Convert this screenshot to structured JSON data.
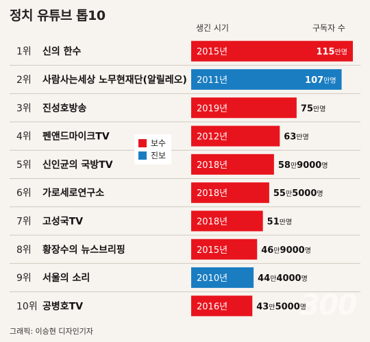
{
  "title": "정치 유튜브 톱10",
  "headers": {
    "year": "생긴 시기",
    "subscribers": "구독자 수"
  },
  "legend": [
    {
      "label": "보수",
      "color": "#e8141d"
    },
    {
      "label": "진보",
      "color": "#1a7dc2"
    }
  ],
  "credit": "그래픽: 이승현 디자인기자",
  "watermark": "300",
  "chart_data": {
    "type": "bar",
    "orientation": "horizontal",
    "unit": "명",
    "categories": [
      "신의 한수",
      "사람사는세상 노무현재단(알릴레오)",
      "진성호방송",
      "펜앤드마이크TV",
      "신인균의 국방TV",
      "가로세로연구소",
      "고성국TV",
      "황장수의 뉴스브리핑",
      "서울의 소리",
      "공병호TV"
    ],
    "ranks": [
      "1위",
      "2위",
      "3위",
      "4위",
      "5위",
      "6위",
      "7위",
      "8위",
      "9위",
      "10위"
    ],
    "years": [
      "2015년",
      "2011년",
      "2019년",
      "2012년",
      "2018년",
      "2018년",
      "2018년",
      "2015년",
      "2010년",
      "2016년"
    ],
    "groups": [
      "보수",
      "진보",
      "보수",
      "보수",
      "보수",
      "보수",
      "보수",
      "보수",
      "진보",
      "보수"
    ],
    "values": [
      1150000,
      1070000,
      750000,
      630000,
      589000,
      555000,
      510000,
      469000,
      444000,
      435000
    ],
    "value_labels": [
      [
        "115",
        "만명"
      ],
      [
        "107",
        "만명"
      ],
      [
        "75",
        "만명"
      ],
      [
        "63",
        "만명"
      ],
      [
        "58",
        "만",
        "9000",
        "명"
      ],
      [
        "55",
        "만",
        "5000",
        "명"
      ],
      [
        "51",
        "만명"
      ],
      [
        "46",
        "만",
        "9000",
        "명"
      ],
      [
        "44",
        "만",
        "4000",
        "명"
      ],
      [
        "43",
        "만",
        "5000",
        "명"
      ]
    ]
  }
}
